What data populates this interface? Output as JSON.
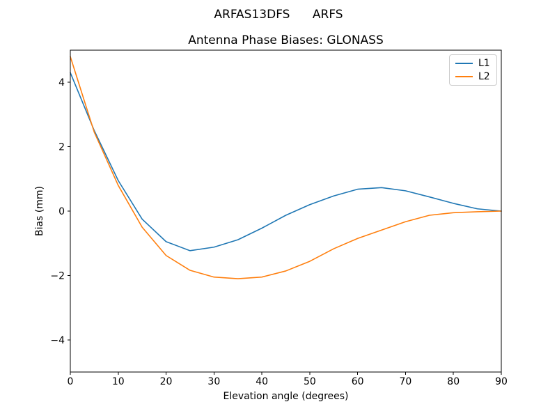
{
  "figure": {
    "suptitle": "ARFAS13DFS      ARFS",
    "background": "#ffffff"
  },
  "chart_data": {
    "type": "line",
    "title": "Antenna Phase Biases: GLONASS",
    "xlabel": "Elevation angle (degrees)",
    "ylabel": "Bias (mm)",
    "xlim": [
      0,
      90
    ],
    "ylim": [
      -5,
      5
    ],
    "xticks": [
      0,
      10,
      20,
      30,
      40,
      50,
      60,
      70,
      80,
      90
    ],
    "yticks": [
      -4,
      -2,
      0,
      2,
      4
    ],
    "grid": false,
    "legend_position": "upper right",
    "axis_color": "#000000",
    "x": [
      0,
      5,
      10,
      15,
      20,
      25,
      30,
      35,
      40,
      45,
      50,
      55,
      60,
      65,
      70,
      75,
      80,
      85,
      90
    ],
    "series": [
      {
        "name": "L1",
        "color": "#1f77b4",
        "values": [
          4.3,
          2.5,
          0.95,
          -0.25,
          -0.95,
          -1.23,
          -1.12,
          -0.89,
          -0.53,
          -0.13,
          0.2,
          0.47,
          0.68,
          0.73,
          0.63,
          0.44,
          0.24,
          0.07,
          0.0
        ]
      },
      {
        "name": "L2",
        "color": "#ff7f0e",
        "values": [
          4.8,
          2.45,
          0.8,
          -0.5,
          -1.38,
          -1.84,
          -2.05,
          -2.1,
          -2.05,
          -1.86,
          -1.56,
          -1.17,
          -0.85,
          -0.59,
          -0.33,
          -0.13,
          -0.05,
          -0.02,
          0.0
        ]
      }
    ]
  }
}
